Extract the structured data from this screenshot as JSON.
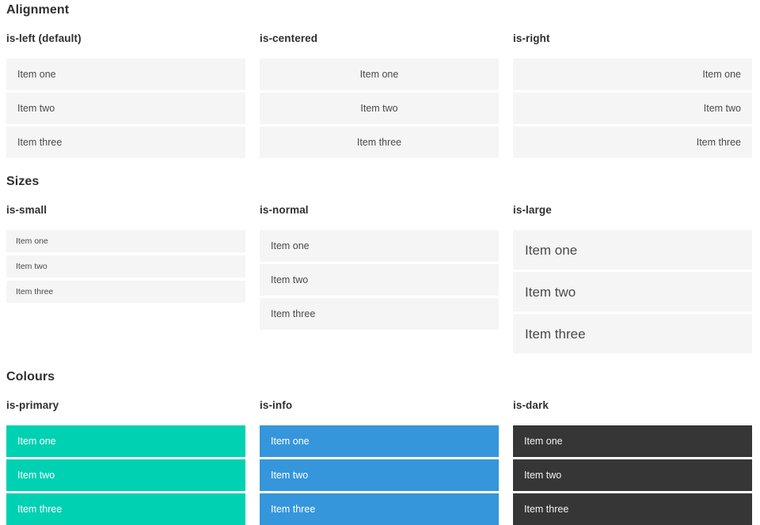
{
  "colors": {
    "primary": "#00d1b2",
    "info": "#3596db",
    "dark": "#363636",
    "itembg": "#f5f5f5",
    "itemtext": "#4a4a4a",
    "headingtext": "#2f2f2f"
  },
  "sections": [
    {
      "title": "Alignment",
      "columns": [
        {
          "heading": "is-left (default)",
          "items": [
            "Item one",
            "Item two",
            "Item three"
          ]
        },
        {
          "heading": "is-centered",
          "items": [
            "Item one",
            "Item two",
            "Item three"
          ]
        },
        {
          "heading": "is-right",
          "items": [
            "Item one",
            "Item two",
            "Item three"
          ]
        }
      ]
    },
    {
      "title": "Sizes",
      "columns": [
        {
          "heading": "is-small",
          "items": [
            "Item one",
            "Item two",
            "Item three"
          ]
        },
        {
          "heading": "is-normal",
          "items": [
            "Item one",
            "Item two",
            "Item three"
          ]
        },
        {
          "heading": "is-large",
          "items": [
            "Item one",
            "Item two",
            "Item three"
          ]
        }
      ]
    },
    {
      "title": "Colours",
      "columns": [
        {
          "heading": "is-primary",
          "items": [
            "Item one",
            "Item two",
            "Item three"
          ]
        },
        {
          "heading": "is-info",
          "items": [
            "Item one",
            "Item two",
            "Item three"
          ]
        },
        {
          "heading": "is-dark",
          "items": [
            "Item one",
            "Item two",
            "Item three"
          ]
        }
      ]
    }
  ]
}
